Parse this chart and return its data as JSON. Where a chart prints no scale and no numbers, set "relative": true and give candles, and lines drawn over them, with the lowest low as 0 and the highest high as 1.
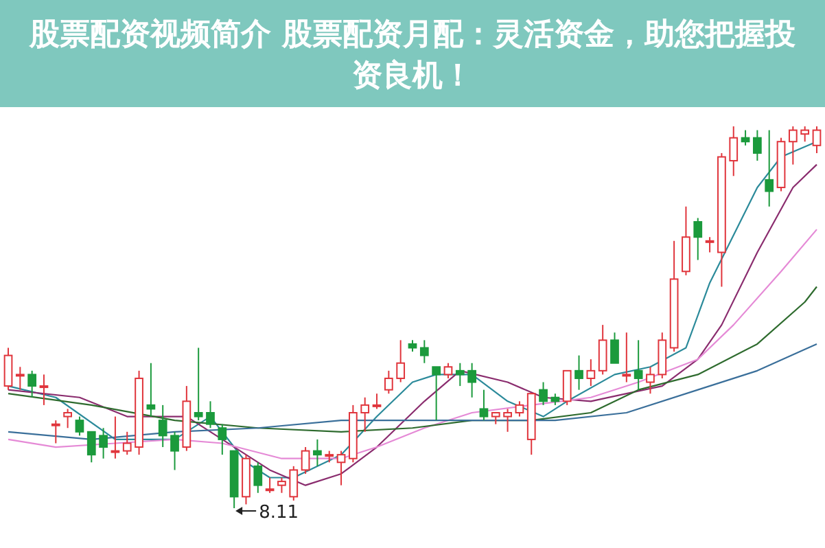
{
  "chart_data": {
    "type": "candlestick",
    "title": "股票配资视频简介 股票配资月配：灵活资金，助您把握投资良机！",
    "relative": true,
    "categories": [
      null,
      null,
      null,
      null,
      null,
      null,
      null,
      null,
      null,
      null,
      null,
      null,
      null,
      null,
      null,
      null,
      null,
      null,
      null,
      null,
      null,
      null,
      null,
      null,
      null,
      null,
      null,
      null,
      null,
      null,
      null,
      null,
      null,
      null,
      null,
      null,
      null,
      null,
      null,
      null,
      null,
      null,
      null,
      null,
      null,
      null,
      null,
      null,
      null,
      null,
      null,
      null,
      null,
      null,
      null,
      null,
      null,
      null,
      null,
      null,
      null,
      null,
      null,
      null,
      null,
      null,
      null,
      null,
      null
    ],
    "ohlc": [
      [
        0.32,
        0.42,
        0.31,
        0.4
      ],
      [
        0.35,
        0.37,
        0.31,
        0.35
      ],
      [
        0.35,
        0.36,
        0.29,
        0.32
      ],
      [
        0.32,
        0.35,
        0.27,
        0.32
      ],
      [
        0.22,
        0.23,
        0.17,
        0.22
      ],
      [
        0.24,
        0.26,
        0.21,
        0.25
      ],
      [
        0.23,
        0.24,
        0.19,
        0.2
      ],
      [
        0.2,
        0.2,
        0.12,
        0.14
      ],
      [
        0.19,
        0.21,
        0.13,
        0.16
      ],
      [
        0.15,
        0.24,
        0.13,
        0.15
      ],
      [
        0.15,
        0.2,
        0.14,
        0.17
      ],
      [
        0.16,
        0.36,
        0.14,
        0.34
      ],
      [
        0.27,
        0.38,
        0.24,
        0.26
      ],
      [
        0.23,
        0.27,
        0.16,
        0.19
      ],
      [
        0.19,
        0.2,
        0.1,
        0.15
      ],
      [
        0.16,
        0.32,
        0.15,
        0.28
      ],
      [
        0.25,
        0.42,
        0.23,
        0.24
      ],
      [
        0.25,
        0.28,
        0.21,
        0.22
      ],
      [
        0.21,
        0.22,
        0.14,
        0.18
      ],
      [
        0.15,
        0.15,
        0.0,
        0.03
      ],
      [
        0.03,
        0.14,
        0.01,
        0.13
      ],
      [
        0.11,
        0.12,
        0.04,
        0.06
      ],
      [
        0.05,
        0.08,
        0.04,
        0.05
      ],
      [
        0.06,
        0.08,
        0.04,
        0.07
      ],
      [
        0.03,
        0.11,
        0.02,
        0.1
      ],
      [
        0.1,
        0.16,
        0.09,
        0.15
      ],
      [
        0.15,
        0.18,
        0.11,
        0.14
      ],
      [
        0.14,
        0.15,
        0.12,
        0.14
      ],
      [
        0.12,
        0.15,
        0.06,
        0.14
      ],
      [
        0.13,
        0.27,
        0.12,
        0.25
      ],
      [
        0.25,
        0.29,
        0.2,
        0.27
      ],
      [
        0.27,
        0.3,
        0.26,
        0.27
      ],
      [
        0.31,
        0.36,
        0.3,
        0.34
      ],
      [
        0.34,
        0.44,
        0.33,
        0.38
      ],
      [
        0.43,
        0.44,
        0.41,
        0.42
      ],
      [
        0.42,
        0.44,
        0.38,
        0.4
      ],
      [
        0.37,
        0.37,
        0.23,
        0.35
      ],
      [
        0.35,
        0.38,
        0.34,
        0.37
      ],
      [
        0.36,
        0.38,
        0.32,
        0.35
      ],
      [
        0.36,
        0.38,
        0.29,
        0.33
      ],
      [
        0.26,
        0.31,
        0.23,
        0.24
      ],
      [
        0.24,
        0.25,
        0.22,
        0.25
      ],
      [
        0.24,
        0.26,
        0.2,
        0.25
      ],
      [
        0.25,
        0.28,
        0.24,
        0.27
      ],
      [
        0.18,
        0.3,
        0.14,
        0.3
      ],
      [
        0.31,
        0.33,
        0.27,
        0.28
      ],
      [
        0.29,
        0.3,
        0.27,
        0.28
      ],
      [
        0.28,
        0.36,
        0.27,
        0.36
      ],
      [
        0.36,
        0.4,
        0.31,
        0.34
      ],
      [
        0.34,
        0.39,
        0.32,
        0.36
      ],
      [
        0.36,
        0.48,
        0.35,
        0.44
      ],
      [
        0.44,
        0.46,
        0.38,
        0.38
      ],
      [
        0.35,
        0.46,
        0.33,
        0.35
      ],
      [
        0.36,
        0.44,
        0.31,
        0.34
      ],
      [
        0.33,
        0.37,
        0.3,
        0.35
      ],
      [
        0.35,
        0.46,
        0.34,
        0.44
      ],
      [
        0.42,
        0.7,
        0.41,
        0.6
      ],
      [
        0.62,
        0.79,
        0.61,
        0.71
      ],
      [
        0.75,
        0.76,
        0.65,
        0.71
      ],
      [
        0.7,
        0.71,
        0.67,
        0.7
      ],
      [
        0.67,
        0.93,
        0.58,
        0.92
      ],
      [
        0.91,
        1.0,
        0.87,
        0.97
      ],
      [
        0.97,
        0.99,
        0.95,
        0.96
      ],
      [
        0.97,
        0.99,
        0.91,
        0.93
      ],
      [
        0.86,
        0.99,
        0.79,
        0.83
      ],
      [
        0.84,
        0.97,
        0.83,
        0.96
      ],
      [
        0.96,
        1.0,
        0.9,
        0.99
      ],
      [
        0.98,
        1.0,
        0.96,
        0.99
      ],
      [
        0.95,
        1.0,
        0.93,
        0.99
      ]
    ],
    "series": [
      {
        "type": "line",
        "color": "#2b8a9a",
        "values": [
          0.32,
          null,
          null,
          null,
          0.29,
          null,
          null,
          null,
          null,
          0.18,
          null,
          null,
          null,
          null,
          0.18,
          null,
          null,
          0.24,
          null,
          null,
          0.12,
          null,
          0.08,
          null,
          0.08,
          null,
          null,
          null,
          0.14,
          null,
          null,
          0.24,
          null,
          null,
          0.33,
          null,
          0.35,
          null,
          null,
          0.35,
          null,
          null,
          0.28,
          null,
          null,
          0.24,
          null,
          0.28,
          null,
          null,
          null,
          0.35,
          null,
          null,
          0.37,
          null,
          null,
          0.42,
          null,
          0.59,
          null,
          null,
          null,
          0.84,
          null,
          0.92,
          null,
          null,
          0.96
        ]
      },
      {
        "type": "line",
        "color": "#8a2c6e",
        "values": [
          0.31,
          null,
          null,
          null,
          null,
          null,
          0.29,
          null,
          null,
          null,
          0.24,
          null,
          null,
          null,
          null,
          0.24,
          null,
          null,
          0.18,
          null,
          null,
          null,
          0.1,
          null,
          null,
          0.06,
          null,
          null,
          0.09,
          null,
          null,
          0.16,
          null,
          null,
          null,
          0.28,
          null,
          null,
          0.36,
          null,
          null,
          null,
          0.33,
          null,
          null,
          0.29,
          null,
          null,
          null,
          0.28,
          null,
          null,
          0.3,
          null,
          null,
          0.32,
          null,
          null,
          0.39,
          null,
          0.48,
          null,
          null,
          0.67,
          null,
          null,
          0.84,
          null,
          0.9
        ]
      },
      {
        "type": "line",
        "color": "#e58ad6",
        "values": [
          0.18,
          null,
          null,
          null,
          0.16,
          null,
          null,
          null,
          null,
          0.17,
          null,
          null,
          null,
          null,
          0.18,
          null,
          null,
          null,
          0.17,
          null,
          null,
          null,
          null,
          0.13,
          null,
          null,
          null,
          null,
          0.13,
          null,
          null,
          0.16,
          null,
          null,
          null,
          0.21,
          null,
          null,
          null,
          0.25,
          null,
          null,
          null,
          null,
          0.27,
          null,
          null,
          null,
          null,
          0.29,
          null,
          null,
          null,
          0.33,
          null,
          null,
          null,
          null,
          0.39,
          null,
          null,
          0.48,
          null,
          null,
          null,
          0.62,
          null,
          null,
          0.73
        ]
      },
      {
        "type": "line",
        "color": "#2e6b2e",
        "values": [
          0.3,
          null,
          null,
          null,
          null,
          null,
          null,
          0.27,
          null,
          null,
          null,
          null,
          null,
          null,
          0.23,
          null,
          null,
          null,
          null,
          null,
          null,
          0.21,
          null,
          null,
          null,
          null,
          null,
          null,
          0.2,
          null,
          null,
          null,
          null,
          null,
          0.21,
          null,
          null,
          null,
          null,
          0.23,
          null,
          null,
          null,
          null,
          0.23,
          null,
          null,
          null,
          null,
          0.25,
          null,
          null,
          null,
          0.31,
          null,
          null,
          null,
          null,
          0.35,
          null,
          null,
          null,
          null,
          0.43,
          null,
          null,
          null,
          0.54,
          0.58
        ]
      },
      {
        "type": "line",
        "color": "#3a6f9a",
        "values": [
          0.2,
          null,
          null,
          null,
          null,
          null,
          null,
          0.18,
          null,
          null,
          null,
          null,
          null,
          null,
          0.2,
          null,
          null,
          null,
          null,
          null,
          null,
          0.21,
          null,
          null,
          null,
          null,
          null,
          null,
          0.23,
          null,
          null,
          null,
          null,
          null,
          null,
          0.23,
          null,
          null,
          null,
          null,
          null,
          0.23,
          null,
          null,
          null,
          null,
          0.23,
          null,
          null,
          null,
          null,
          null,
          0.25,
          null,
          null,
          null,
          null,
          null,
          0.31,
          null,
          null,
          null,
          null,
          0.36,
          null,
          null,
          null,
          null,
          0.43
        ]
      }
    ],
    "annotations": [
      "8.11"
    ]
  }
}
